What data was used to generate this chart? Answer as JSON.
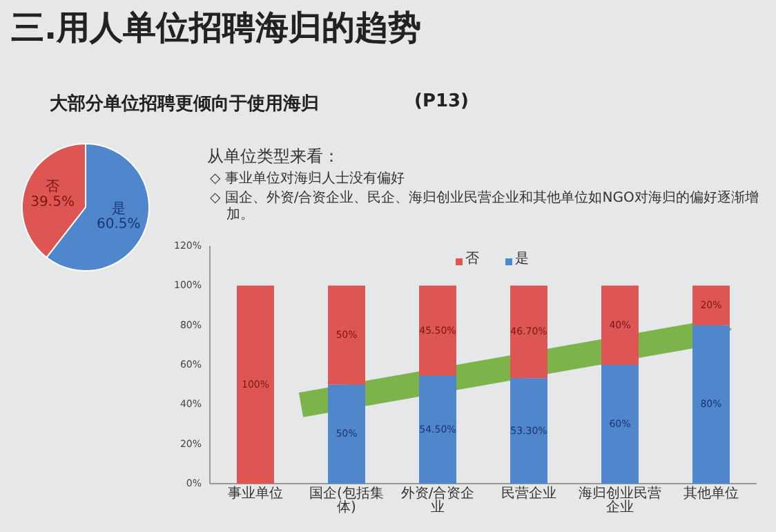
{
  "chart_data": [
    {
      "type": "pie",
      "title": "三.用人单位招聘海归的趋势",
      "subtitle": "大部分单位招聘更倾向于使用海归",
      "annotations": [
        "(P13)"
      ],
      "categories": [
        "否",
        "是"
      ],
      "values": [
        39.5,
        60.5
      ],
      "colors": [
        "#dd5653",
        "#4f86cc"
      ],
      "value_labels": [
        "39.5%",
        "60.5%"
      ]
    },
    {
      "type": "bar",
      "stacked": true,
      "categories": [
        "事业单位",
        "国企(包括集体)",
        "外资/合资企业",
        "民营企业",
        "海归创业民营企业",
        "其他单位"
      ],
      "series": [
        {
          "name": "是",
          "color": "#4f86cc",
          "values": [
            0,
            50,
            54.5,
            53.3,
            60,
            80
          ],
          "value_labels": [
            null,
            "50%",
            "54.50%",
            "53.30%",
            "60%",
            "80%"
          ]
        },
        {
          "name": "否",
          "color": "#dd5653",
          "values": [
            100,
            50,
            45.5,
            46.7,
            40,
            20
          ],
          "value_labels": [
            "100%",
            "50%",
            "45.50%",
            "46.70%",
            "40%",
            "20%"
          ]
        }
      ],
      "ylim": [
        0,
        120
      ],
      "yticks": [
        {
          "value": 0,
          "label": "0%"
        },
        {
          "value": 20,
          "label": "20%"
        },
        {
          "value": 40,
          "label": "40%"
        },
        {
          "value": 60,
          "label": "60%"
        },
        {
          "value": 80,
          "label": "80%"
        },
        {
          "value": 100,
          "label": "100%"
        },
        {
          "value": 120,
          "label": "120%"
        }
      ],
      "legend": "top",
      "grid": false,
      "annotations": [
        "从单位类型来看：",
        "◇ 事业单位对海归人士没有偏好",
        "◇ 国企、外资/合资企业、民企、海归创业民营企业和其他单位如NGO对海归的偏好逐渐增加。"
      ]
    }
  ]
}
